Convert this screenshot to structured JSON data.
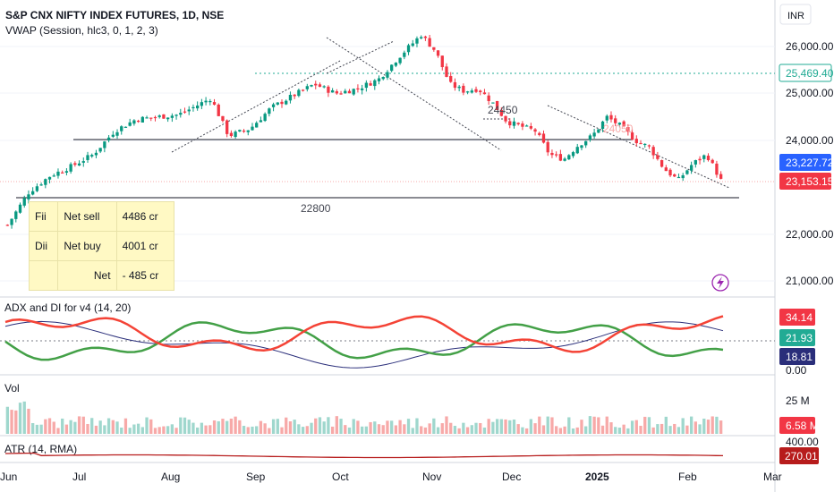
{
  "header": {
    "symbol": "S&P CNX NIFTY INDEX FUTURES, 1D, NSE",
    "indicator": "VWAP (Session, hlc3, 0, 1, 2, 3)",
    "currency": "INR"
  },
  "price_axis": {
    "ticks": [
      "26,000.00",
      "25,000.00",
      "24,000.00",
      "22,000.00",
      "21,000.00"
    ],
    "badges": [
      {
        "label": "25,469.40",
        "color": "#22ab94",
        "style": "outline"
      },
      {
        "label": "23,227.72",
        "color": "#2962ff",
        "style": "fill"
      },
      {
        "label": "23,153.15",
        "color": "#f23645",
        "style": "fill"
      }
    ]
  },
  "annotations": {
    "level_22800": "22800",
    "level_24450": "24450",
    "level_24050": "24050"
  },
  "fii_table": {
    "rows": [
      [
        "Fii",
        "Net sell",
        "4486  cr"
      ],
      [
        "Dii",
        "Net buy",
        "4001  cr"
      ],
      [
        "",
        "Net",
        "- 485 cr"
      ]
    ]
  },
  "adx_panel": {
    "title": "ADX and DI for v4 (14, 20)",
    "badges": [
      {
        "label": "34.14",
        "color": "#f23645"
      },
      {
        "label": "21.93",
        "color": "#22ab94"
      },
      {
        "label": "18.81",
        "color": "#2a2e7a"
      }
    ],
    "axis_bottom": "0.00"
  },
  "vol_panel": {
    "title": "Vol",
    "axis_tick": "25 M",
    "badge": {
      "label": "6.58 M",
      "color": "#f23645"
    }
  },
  "atr_panel": {
    "title": "ATR (14, RMA)",
    "axis_tick": "400.00",
    "badge": {
      "label": "270.01",
      "color": "#b71c1c"
    }
  },
  "time_axis": {
    "labels": [
      "Jun",
      "Jul",
      "Aug",
      "Sep",
      "Oct",
      "Nov",
      "Dec",
      "2025",
      "Feb",
      "Mar"
    ]
  },
  "chart_data": {
    "type": "line",
    "title": "S&P CNX NIFTY INDEX FUTURES, 1D, NSE",
    "x_range": [
      "Jun",
      "Mar"
    ],
    "y_range": [
      21000,
      26500
    ],
    "price_path": [
      {
        "t": 0.0,
        "v": 22200
      },
      {
        "t": 0.03,
        "v": 22900
      },
      {
        "t": 0.06,
        "v": 23250
      },
      {
        "t": 0.09,
        "v": 23450
      },
      {
        "t": 0.12,
        "v": 23700
      },
      {
        "t": 0.15,
        "v": 24200
      },
      {
        "t": 0.18,
        "v": 24450
      },
      {
        "t": 0.21,
        "v": 24500
      },
      {
        "t": 0.24,
        "v": 24550
      },
      {
        "t": 0.26,
        "v": 24700
      },
      {
        "t": 0.285,
        "v": 24900
      },
      {
        "t": 0.31,
        "v": 24100
      },
      {
        "t": 0.34,
        "v": 24250
      },
      {
        "t": 0.37,
        "v": 24700
      },
      {
        "t": 0.4,
        "v": 24950
      },
      {
        "t": 0.43,
        "v": 25200
      },
      {
        "t": 0.46,
        "v": 25000
      },
      {
        "t": 0.49,
        "v": 25100
      },
      {
        "t": 0.52,
        "v": 25300
      },
      {
        "t": 0.55,
        "v": 25800
      },
      {
        "t": 0.58,
        "v": 26250
      },
      {
        "t": 0.6,
        "v": 25900
      },
      {
        "t": 0.62,
        "v": 25200
      },
      {
        "t": 0.64,
        "v": 25050
      },
      {
        "t": 0.66,
        "v": 25100
      },
      {
        "t": 0.68,
        "v": 24800
      },
      {
        "t": 0.7,
        "v": 24400
      },
      {
        "t": 0.72,
        "v": 24300
      },
      {
        "t": 0.74,
        "v": 24200
      },
      {
        "t": 0.76,
        "v": 23700
      },
      {
        "t": 0.78,
        "v": 23600
      },
      {
        "t": 0.8,
        "v": 23900
      },
      {
        "t": 0.82,
        "v": 24100
      },
      {
        "t": 0.84,
        "v": 24500
      },
      {
        "t": 0.86,
        "v": 24300
      },
      {
        "t": 0.88,
        "v": 24000
      },
      {
        "t": 0.9,
        "v": 23850
      },
      {
        "t": 0.92,
        "v": 23400
      },
      {
        "t": 0.94,
        "v": 23150
      },
      {
        "t": 0.96,
        "v": 23500
      },
      {
        "t": 0.98,
        "v": 23700
      },
      {
        "t": 1.0,
        "v": 23150
      }
    ],
    "last_price": 23153.15,
    "vwap": 23227.72,
    "dotted_level": 25469.4,
    "support_level": 22800,
    "resistance_level": 24050,
    "adx": {
      "plus_di": 34.14,
      "minus_di": 21.93,
      "adx": 18.81
    },
    "volume_last": "6.58 M",
    "atr_last": 270.01
  }
}
